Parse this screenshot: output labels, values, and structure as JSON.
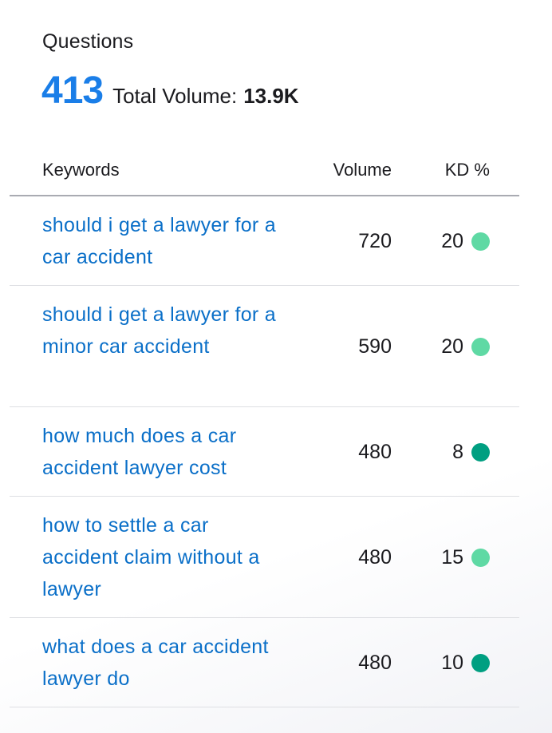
{
  "widget": {
    "title": "Questions",
    "count": "413",
    "total_volume_label": "Total Volume:",
    "total_volume_value": "13.9K"
  },
  "table": {
    "headers": {
      "keyword": "Keywords",
      "volume": "Volume",
      "kd": "KD %"
    },
    "rows": [
      {
        "keyword": "should i get a lawyer for a car accident",
        "volume": "720",
        "kd": "20",
        "kd_level": "easy",
        "kd_color": "#5fd9a4"
      },
      {
        "keyword": "should i get a lawyer for a minor car accident",
        "volume": "590",
        "kd": "20",
        "kd_level": "easy",
        "kd_color": "#5fd9a4"
      },
      {
        "keyword": "how much does a car accident lawyer cost",
        "volume": "480",
        "kd": "8",
        "kd_level": "very-easy",
        "kd_color": "#009f81"
      },
      {
        "keyword": "how to settle a car accident claim without a lawyer",
        "volume": "480",
        "kd": "15",
        "kd_level": "easy",
        "kd_color": "#5fd9a4"
      },
      {
        "keyword": "what does a car accident lawyer do",
        "volume": "480",
        "kd": "10",
        "kd_level": "very-easy",
        "kd_color": "#009f81"
      }
    ]
  },
  "colors": {
    "accent": "#1a7ee8",
    "link": "#0a6fc8"
  }
}
